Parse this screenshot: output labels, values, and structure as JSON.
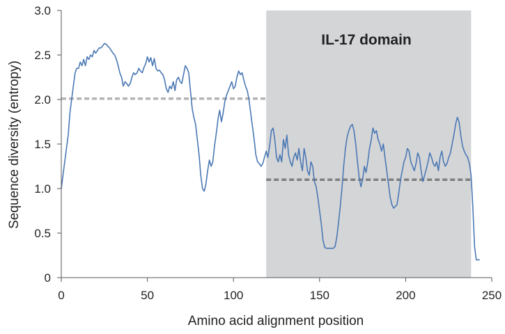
{
  "chart_data": {
    "type": "line",
    "xlabel": "Amino acid alignment position",
    "ylabel": "Sequence diversity (entropy)",
    "xlim": [
      0,
      250
    ],
    "ylim": [
      0,
      3.0
    ],
    "x_ticks": [
      0,
      50,
      100,
      150,
      200,
      250
    ],
    "y_ticks": [
      "0",
      "0.5",
      "1.0",
      "1.5",
      "2.0",
      "2.5",
      "3.0"
    ],
    "grid": false,
    "legend": "none",
    "shaded_region": {
      "label": "IL-17 domain",
      "x_start": 119,
      "x_end": 238,
      "color": "#d4d5d7"
    },
    "reference_lines": [
      {
        "x_start": 0,
        "x_end": 119,
        "y": 2.01,
        "color": "#b4b4b4",
        "style": "dashed"
      },
      {
        "x_start": 119,
        "x_end": 238,
        "y": 1.1,
        "color": "#7f7f7f",
        "style": "dashed"
      }
    ],
    "series": [
      {
        "color": "#4a78b4",
        "points": [
          [
            0,
            1.0
          ],
          [
            2,
            1.3
          ],
          [
            4,
            1.6
          ],
          [
            5,
            1.85
          ],
          [
            6,
            2.0
          ],
          [
            7,
            2.15
          ],
          [
            8,
            2.3
          ],
          [
            9,
            2.35
          ],
          [
            10,
            2.35
          ],
          [
            11,
            2.42
          ],
          [
            12,
            2.38
          ],
          [
            13,
            2.45
          ],
          [
            14,
            2.38
          ],
          [
            15,
            2.48
          ],
          [
            16,
            2.45
          ],
          [
            17,
            2.5
          ],
          [
            18,
            2.48
          ],
          [
            19,
            2.55
          ],
          [
            20,
            2.52
          ],
          [
            21,
            2.55
          ],
          [
            22,
            2.58
          ],
          [
            23,
            2.58
          ],
          [
            24,
            2.6
          ],
          [
            25,
            2.63
          ],
          [
            26,
            2.62
          ],
          [
            27,
            2.6
          ],
          [
            28,
            2.58
          ],
          [
            29,
            2.55
          ],
          [
            30,
            2.52
          ],
          [
            31,
            2.5
          ],
          [
            32,
            2.45
          ],
          [
            33,
            2.38
          ],
          [
            34,
            2.3
          ],
          [
            35,
            2.25
          ],
          [
            36,
            2.15
          ],
          [
            37,
            2.2
          ],
          [
            38,
            2.18
          ],
          [
            39,
            2.15
          ],
          [
            40,
            2.18
          ],
          [
            41,
            2.25
          ],
          [
            42,
            2.3
          ],
          [
            43,
            2.28
          ],
          [
            44,
            2.3
          ],
          [
            45,
            2.35
          ],
          [
            46,
            2.32
          ],
          [
            47,
            2.3
          ],
          [
            48,
            2.36
          ],
          [
            49,
            2.4
          ],
          [
            50,
            2.48
          ],
          [
            51,
            2.42
          ],
          [
            52,
            2.47
          ],
          [
            53,
            2.38
          ],
          [
            54,
            2.46
          ],
          [
            55,
            2.35
          ],
          [
            56,
            2.32
          ],
          [
            57,
            2.33
          ],
          [
            58,
            2.3
          ],
          [
            59,
            2.28
          ],
          [
            60,
            2.22
          ],
          [
            61,
            2.12
          ],
          [
            62,
            2.08
          ],
          [
            63,
            2.15
          ],
          [
            64,
            2.12
          ],
          [
            65,
            2.2
          ],
          [
            66,
            2.1
          ],
          [
            67,
            2.22
          ],
          [
            68,
            2.25
          ],
          [
            69,
            2.2
          ],
          [
            70,
            2.18
          ],
          [
            71,
            2.28
          ],
          [
            72,
            2.38
          ],
          [
            73,
            2.35
          ],
          [
            74,
            2.3
          ],
          [
            75,
            2.1
          ],
          [
            76,
            1.9
          ],
          [
            77,
            1.8
          ],
          [
            78,
            1.72
          ],
          [
            79,
            1.55
          ],
          [
            80,
            1.38
          ],
          [
            81,
            1.15
          ],
          [
            82,
            1.0
          ],
          [
            83,
            0.97
          ],
          [
            84,
            1.05
          ],
          [
            85,
            1.2
          ],
          [
            86,
            1.32
          ],
          [
            87,
            1.25
          ],
          [
            88,
            1.3
          ],
          [
            89,
            1.48
          ],
          [
            90,
            1.62
          ],
          [
            91,
            1.78
          ],
          [
            92,
            1.88
          ],
          [
            93,
            1.75
          ],
          [
            94,
            1.85
          ],
          [
            95,
            1.98
          ],
          [
            96,
            2.05
          ],
          [
            97,
            2.1
          ],
          [
            98,
            2.15
          ],
          [
            99,
            2.2
          ],
          [
            100,
            2.12
          ],
          [
            101,
            2.15
          ],
          [
            102,
            2.25
          ],
          [
            103,
            2.32
          ],
          [
            104,
            2.28
          ],
          [
            105,
            2.3
          ],
          [
            106,
            2.22
          ],
          [
            107,
            2.15
          ],
          [
            108,
            2.1
          ],
          [
            109,
            2.0
          ],
          [
            110,
            1.85
          ],
          [
            111,
            1.7
          ],
          [
            112,
            1.55
          ],
          [
            113,
            1.38
          ],
          [
            114,
            1.3
          ],
          [
            115,
            1.28
          ],
          [
            116,
            1.25
          ],
          [
            117,
            1.28
          ],
          [
            118,
            1.35
          ],
          [
            119,
            1.42
          ],
          [
            120,
            1.35
          ],
          [
            121,
            1.48
          ],
          [
            122,
            1.65
          ],
          [
            123,
            1.68
          ],
          [
            124,
            1.55
          ],
          [
            125,
            1.35
          ],
          [
            126,
            1.3
          ],
          [
            127,
            1.38
          ],
          [
            128,
            1.3
          ],
          [
            129,
            1.55
          ],
          [
            130,
            1.45
          ],
          [
            131,
            1.6
          ],
          [
            132,
            1.38
          ],
          [
            133,
            1.3
          ],
          [
            134,
            1.25
          ],
          [
            135,
            1.35
          ],
          [
            136,
            1.4
          ],
          [
            137,
            1.32
          ],
          [
            138,
            1.45
          ],
          [
            139,
            1.3
          ],
          [
            140,
            1.2
          ],
          [
            141,
            1.45
          ],
          [
            142,
            1.35
          ],
          [
            143,
            1.2
          ],
          [
            144,
            1.15
          ],
          [
            145,
            1.3
          ],
          [
            146,
            1.25
          ],
          [
            147,
            1.08
          ],
          [
            148,
            1.02
          ],
          [
            149,
            0.9
          ],
          [
            150,
            0.75
          ],
          [
            151,
            0.6
          ],
          [
            152,
            0.42
          ],
          [
            153,
            0.34
          ],
          [
            154,
            0.33
          ],
          [
            156,
            0.33
          ],
          [
            158,
            0.33
          ],
          [
            159,
            0.35
          ],
          [
            160,
            0.45
          ],
          [
            161,
            0.62
          ],
          [
            162,
            0.8
          ],
          [
            163,
            1.0
          ],
          [
            164,
            1.25
          ],
          [
            165,
            1.45
          ],
          [
            166,
            1.58
          ],
          [
            167,
            1.65
          ],
          [
            168,
            1.7
          ],
          [
            169,
            1.72
          ],
          [
            170,
            1.65
          ],
          [
            171,
            1.5
          ],
          [
            172,
            1.3
          ],
          [
            173,
            1.12
          ],
          [
            174,
            1.02
          ],
          [
            175,
            1.1
          ],
          [
            176,
            1.25
          ],
          [
            177,
            1.18
          ],
          [
            178,
            1.3
          ],
          [
            179,
            1.45
          ],
          [
            180,
            1.55
          ],
          [
            181,
            1.68
          ],
          [
            182,
            1.62
          ],
          [
            183,
            1.65
          ],
          [
            184,
            1.55
          ],
          [
            185,
            1.5
          ],
          [
            186,
            1.42
          ],
          [
            187,
            1.5
          ],
          [
            188,
            1.35
          ],
          [
            189,
            1.2
          ],
          [
            190,
            1.05
          ],
          [
            191,
            0.9
          ],
          [
            192,
            0.82
          ],
          [
            193,
            0.78
          ],
          [
            194,
            0.8
          ],
          [
            195,
            0.82
          ],
          [
            196,
            0.95
          ],
          [
            197,
            1.1
          ],
          [
            198,
            1.2
          ],
          [
            199,
            1.3
          ],
          [
            200,
            1.35
          ],
          [
            201,
            1.45
          ],
          [
            202,
            1.42
          ],
          [
            203,
            1.3
          ],
          [
            204,
            1.25
          ],
          [
            205,
            1.2
          ],
          [
            206,
            1.28
          ],
          [
            207,
            1.4
          ],
          [
            208,
            1.35
          ],
          [
            209,
            1.2
          ],
          [
            210,
            1.08
          ],
          [
            211,
            1.15
          ],
          [
            212,
            1.22
          ],
          [
            213,
            1.3
          ],
          [
            214,
            1.4
          ],
          [
            215,
            1.35
          ],
          [
            216,
            1.28
          ],
          [
            217,
            1.25
          ],
          [
            218,
            1.3
          ],
          [
            219,
            1.2
          ],
          [
            220,
            1.35
          ],
          [
            221,
            1.42
          ],
          [
            222,
            1.3
          ],
          [
            223,
            1.25
          ],
          [
            224,
            1.28
          ],
          [
            225,
            1.35
          ],
          [
            226,
            1.4
          ],
          [
            227,
            1.5
          ],
          [
            228,
            1.6
          ],
          [
            229,
            1.72
          ],
          [
            230,
            1.8
          ],
          [
            231,
            1.75
          ],
          [
            232,
            1.6
          ],
          [
            233,
            1.48
          ],
          [
            234,
            1.42
          ],
          [
            235,
            1.38
          ],
          [
            236,
            1.35
          ],
          [
            237,
            1.28
          ],
          [
            238,
            1.15
          ],
          [
            239,
            0.8
          ],
          [
            240,
            0.35
          ],
          [
            241,
            0.2
          ],
          [
            242,
            0.2
          ],
          [
            243,
            0.2
          ]
        ]
      }
    ]
  }
}
